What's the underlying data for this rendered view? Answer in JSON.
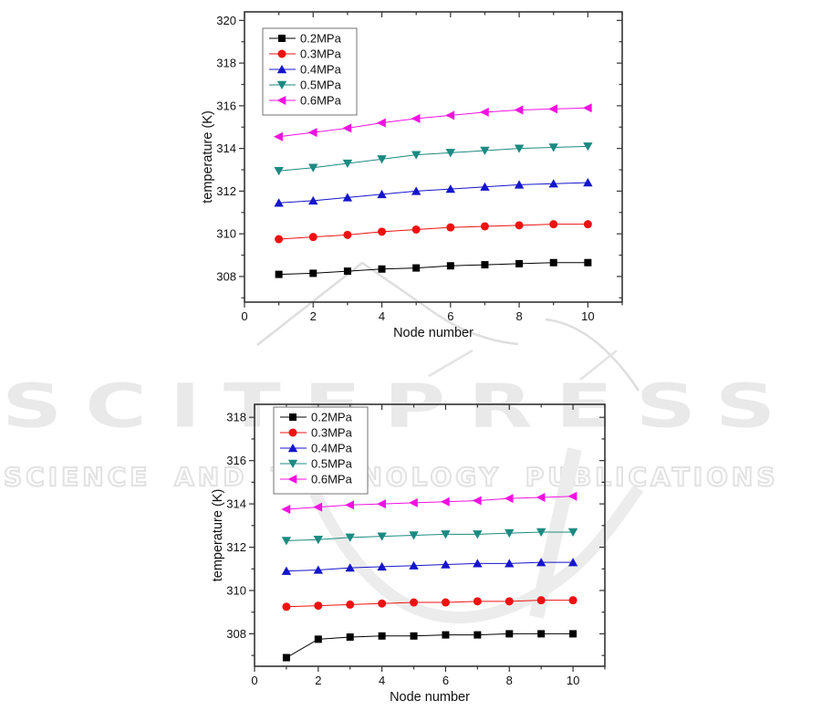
{
  "watermark": {
    "wordmark": "SCITEPRESS",
    "subtitle": "SCIENCE AND TECHNOLOGY PUBLICATIONS",
    "wordmark_color": "#e9e9e9",
    "outline_color": "#e2e2e2"
  },
  "chart_data": [
    {
      "type": "line",
      "title": "",
      "xlabel": "Node number",
      "ylabel": "temperature (K)",
      "x": [
        1,
        2,
        3,
        4,
        5,
        6,
        7,
        8,
        9,
        10
      ],
      "xlim": [
        0,
        11
      ],
      "ylim": [
        306.8,
        320.4
      ],
      "xticks": [
        0,
        2,
        4,
        6,
        8,
        10
      ],
      "yticks": [
        308,
        310,
        312,
        314,
        316,
        318,
        320
      ],
      "grid": false,
      "legend_position": "top-left",
      "series": [
        {
          "name": "0.2MPa",
          "color": "#000000",
          "marker": "square",
          "values": [
            308.1,
            308.15,
            308.25,
            308.35,
            308.4,
            308.5,
            308.55,
            308.6,
            308.65,
            308.65
          ]
        },
        {
          "name": "0.3MPa",
          "color": "#ee1111",
          "marker": "circle",
          "values": [
            309.75,
            309.85,
            309.95,
            310.1,
            310.2,
            310.3,
            310.35,
            310.4,
            310.45,
            310.45
          ]
        },
        {
          "name": "0.4MPa",
          "color": "#1515cc",
          "marker": "triangle-up",
          "values": [
            311.45,
            311.55,
            311.7,
            311.85,
            312.0,
            312.1,
            312.2,
            312.3,
            312.35,
            312.4
          ]
        },
        {
          "name": "0.5MPa",
          "color": "#1b8a82",
          "marker": "triangle-down",
          "values": [
            312.95,
            313.1,
            313.3,
            313.5,
            313.7,
            313.8,
            313.9,
            314.0,
            314.05,
            314.1
          ]
        },
        {
          "name": "0.6MPa",
          "color": "#f211e2",
          "marker": "triangle-left",
          "values": [
            314.55,
            314.75,
            314.95,
            315.2,
            315.4,
            315.55,
            315.7,
            315.8,
            315.85,
            315.9
          ]
        }
      ]
    },
    {
      "type": "line",
      "title": "",
      "xlabel": "Node number",
      "ylabel": "temperature (K)",
      "x": [
        1,
        2,
        3,
        4,
        5,
        6,
        7,
        8,
        9,
        10
      ],
      "xlim": [
        0,
        11
      ],
      "ylim": [
        306.5,
        318.6
      ],
      "xticks": [
        0,
        2,
        4,
        6,
        8,
        10
      ],
      "yticks": [
        308,
        310,
        312,
        314,
        316,
        318
      ],
      "grid": false,
      "legend_position": "top-left",
      "series": [
        {
          "name": "0.2MPa",
          "color": "#000000",
          "marker": "square",
          "values": [
            306.9,
            307.75,
            307.85,
            307.9,
            307.9,
            307.95,
            307.95,
            308.0,
            308.0,
            308.0
          ]
        },
        {
          "name": "0.3MPa",
          "color": "#ee1111",
          "marker": "circle",
          "values": [
            309.25,
            309.3,
            309.35,
            309.4,
            309.45,
            309.45,
            309.5,
            309.5,
            309.55,
            309.55
          ]
        },
        {
          "name": "0.4MPa",
          "color": "#1515cc",
          "marker": "triangle-up",
          "values": [
            310.9,
            310.95,
            311.05,
            311.1,
            311.15,
            311.2,
            311.25,
            311.25,
            311.3,
            311.3
          ]
        },
        {
          "name": "0.5MPa",
          "color": "#1b8a82",
          "marker": "triangle-down",
          "values": [
            312.3,
            312.35,
            312.45,
            312.5,
            312.55,
            312.6,
            312.6,
            312.65,
            312.7,
            312.7
          ]
        },
        {
          "name": "0.6MPa",
          "color": "#f211e2",
          "marker": "triangle-left",
          "values": [
            313.75,
            313.85,
            313.95,
            314.0,
            314.05,
            314.1,
            314.15,
            314.25,
            314.3,
            314.35
          ]
        }
      ]
    }
  ]
}
